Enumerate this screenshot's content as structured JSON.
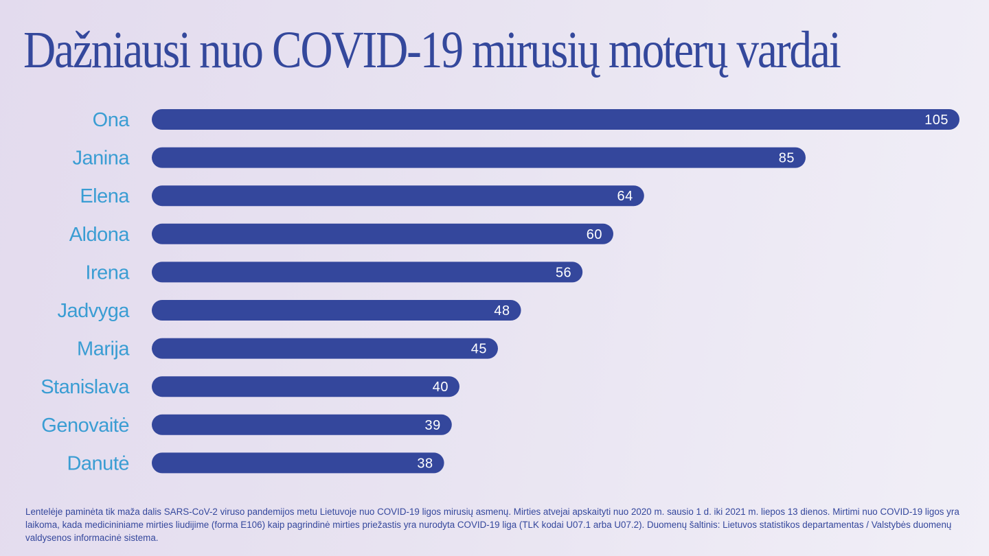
{
  "title": "Dažniausi nuo COVID-19 mirusių moterų vardai",
  "footnote": "Lentelėje paminėta tik maža dalis SARS-CoV-2 viruso pandemijos metu Lietuvoje nuo COVID-19 ligos mirusių asmenų. Mirties atvejai apskaityti nuo 2020 m. sausio 1 d. iki 2021 m. liepos 13 dienos. Mirtimi nuo COVID-19 ligos yra laikoma, kada medicininiame mirties liudijime (forma E106) kaip pagrindinė mirties priežastis yra nurodyta COVID-19 liga (TLK kodai U07.1 arba U07.2). Duomenų šaltinis: Lietuvos statistikos departamentas / Valstybės duomenų valdysenos informacinė sistema.",
  "colors": {
    "bar": "#34479c",
    "name_label": "#3a9dd3",
    "title": "#34489c",
    "value_label": "#ffffff"
  },
  "chart_data": {
    "type": "bar",
    "orientation": "horizontal",
    "title": "Dažniausi nuo COVID-19 mirusių moterų vardai",
    "xlabel": "",
    "ylabel": "",
    "categories": [
      "Ona",
      "Janina",
      "Elena",
      "Aldona",
      "Irena",
      "Jadvyga",
      "Marija",
      "Stanislava",
      "Genovaitė",
      "Danutė"
    ],
    "values": [
      105,
      85,
      64,
      60,
      56,
      48,
      45,
      40,
      39,
      38
    ],
    "xlim": [
      0,
      105
    ],
    "grid": false,
    "legend": "none",
    "data_labels": true
  }
}
